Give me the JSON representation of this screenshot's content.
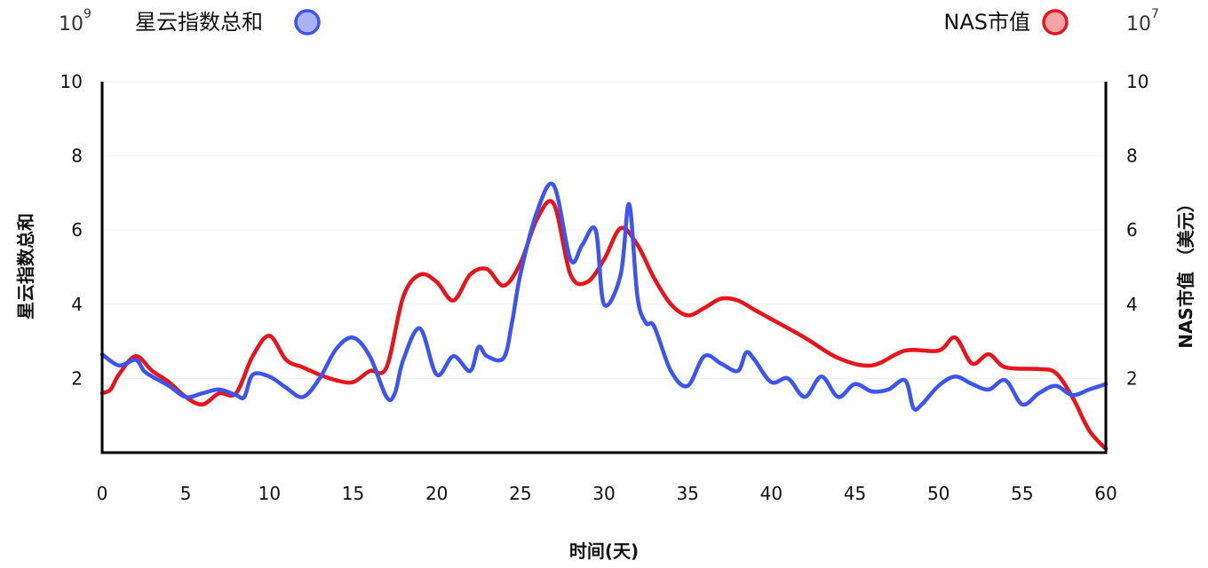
{
  "chart_data": {
    "type": "line",
    "x_label": "时间(天)",
    "y_left_label": "星云指数总和",
    "y_right_label": "NAS市值 （美元）",
    "y_left_exponent": {
      "base": "10",
      "power": "9"
    },
    "y_right_exponent": {
      "base": "10",
      "power": "7"
    },
    "xlim": [
      0,
      60
    ],
    "x_ticks": [
      "0",
      "5",
      "10",
      "15",
      "20",
      "25",
      "30",
      "35",
      "40",
      "45",
      "50",
      "55",
      "60"
    ],
    "ylim_left": [
      0,
      10
    ],
    "ylim_right": [
      0,
      10
    ],
    "y_ticks_left": [
      "2",
      "4",
      "6",
      "8",
      "10"
    ],
    "y_ticks_right": [
      "2",
      "4",
      "6",
      "8",
      "10"
    ],
    "grid": "horizontal",
    "legend_placement": "top",
    "series": [
      {
        "name": "星云指数总和",
        "axis": "left",
        "color": "#3c55f0",
        "marker_fill": "#a9b4f8",
        "x": [
          0,
          1,
          2,
          2.5,
          3,
          4,
          5,
          6,
          7,
          8,
          8.5,
          9,
          10,
          11,
          12,
          13,
          14,
          15,
          16,
          17,
          17.5,
          18,
          19,
          20,
          21,
          22,
          22.5,
          23,
          24,
          24.5,
          25,
          26,
          27,
          28,
          28.7,
          29.5,
          30,
          31,
          31.5,
          32,
          32.5,
          33,
          34,
          35,
          36,
          37,
          38,
          38.5,
          39,
          40,
          41,
          42,
          43,
          44,
          45,
          46,
          47,
          48,
          48.5,
          49,
          50,
          51,
          52,
          53,
          54,
          55,
          56,
          57,
          58,
          59,
          60
        ],
        "y": [
          2.65,
          2.35,
          2.5,
          2.2,
          2.05,
          1.8,
          1.5,
          1.6,
          1.7,
          1.55,
          1.5,
          2.1,
          2.05,
          1.75,
          1.5,
          2.0,
          2.8,
          3.1,
          2.6,
          1.5,
          1.6,
          2.5,
          3.35,
          2.1,
          2.6,
          2.2,
          2.85,
          2.6,
          2.55,
          3.5,
          4.8,
          6.5,
          7.2,
          5.2,
          5.6,
          6.0,
          4.0,
          4.8,
          6.7,
          4.2,
          3.5,
          3.4,
          2.2,
          1.8,
          2.6,
          2.4,
          2.2,
          2.7,
          2.5,
          1.9,
          2.0,
          1.5,
          2.05,
          1.5,
          1.85,
          1.65,
          1.7,
          1.95,
          1.2,
          1.3,
          1.8,
          2.05,
          1.85,
          1.7,
          1.95,
          1.3,
          1.6,
          1.8,
          1.55,
          1.7,
          1.85
        ]
      },
      {
        "name": "NAS市值",
        "axis": "right",
        "color": "#e8141b",
        "marker_fill": "#f5a3a6",
        "x": [
          0,
          0.5,
          1,
          2,
          3,
          4,
          5,
          6,
          7,
          8,
          9,
          10,
          11,
          12,
          13,
          14,
          15,
          16,
          17,
          18,
          19,
          20,
          21,
          22,
          23,
          24,
          25,
          26,
          27,
          28,
          29,
          30,
          31,
          32,
          33,
          34,
          35,
          36,
          37,
          38,
          39,
          40,
          42,
          44,
          46,
          48,
          50,
          51,
          52,
          53,
          54,
          56,
          57,
          58,
          59,
          60
        ],
        "y": [
          1.6,
          1.7,
          2.1,
          2.6,
          2.2,
          1.9,
          1.5,
          1.3,
          1.6,
          1.6,
          2.6,
          3.15,
          2.5,
          2.3,
          2.1,
          1.95,
          1.9,
          2.2,
          2.3,
          4.2,
          4.8,
          4.6,
          4.1,
          4.8,
          4.95,
          4.5,
          5.1,
          6.3,
          6.7,
          4.8,
          4.6,
          5.2,
          6.05,
          5.6,
          4.7,
          4.0,
          3.7,
          3.9,
          4.15,
          4.1,
          3.85,
          3.6,
          3.1,
          2.55,
          2.35,
          2.75,
          2.75,
          3.1,
          2.4,
          2.65,
          2.3,
          2.25,
          2.15,
          1.5,
          0.6,
          0.1
        ]
      }
    ]
  }
}
